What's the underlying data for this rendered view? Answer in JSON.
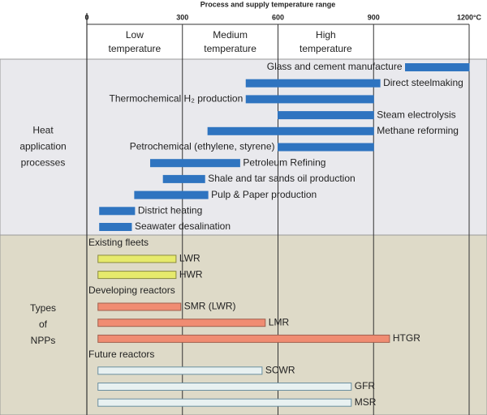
{
  "chart_data": {
    "type": "range-bar",
    "title": "Process and supply temperature range",
    "xlim": [
      0,
      1200
    ],
    "xticks": [
      0,
      300,
      600,
      900,
      {
        "value": 1200,
        "label": "1200°C"
      }
    ],
    "bands": [
      [
        "Low",
        "temperature"
      ],
      [
        "Medium",
        "temperature"
      ],
      [
        "High",
        "temperature"
      ]
    ],
    "groups": [
      {
        "label": [
          "Heat",
          "application",
          "processes"
        ],
        "background": "#e9e9ed",
        "subgroups": [
          {
            "color": "#2f74c0",
            "stroke": "#2f74c0",
            "bars": [
              {
                "label": "Glass and cement manufacture",
                "start": 1000,
                "end": 1200
              },
              {
                "label": "Direct steelmaking",
                "start": 500,
                "end": 920
              },
              {
                "label": "Thermochemical H₂ production",
                "start": 500,
                "end": 900
              },
              {
                "label": "Steam electrolysis",
                "start": 600,
                "end": 900
              },
              {
                "label": "Methane reforming",
                "start": 380,
                "end": 900
              },
              {
                "label": "Petrochemical (ethylene, styrene)",
                "start": 600,
                "end": 900
              },
              {
                "label": "Petroleum Refining",
                "start": 200,
                "end": 480
              },
              {
                "label": "Shale and tar sands oil production",
                "start": 240,
                "end": 370
              },
              {
                "label": "Pulp & Paper production",
                "start": 150,
                "end": 380
              },
              {
                "label": "District heating",
                "start": 40,
                "end": 150
              },
              {
                "label": "Seawater desalination",
                "start": 40,
                "end": 140
              }
            ]
          }
        ]
      },
      {
        "label": [
          "Types",
          "of",
          "NPPs"
        ],
        "background": "#dedac8",
        "subgroups": [
          {
            "name": "Existing fleets",
            "color": "#e6ea6c",
            "stroke": "#8a8a40",
            "bars": [
              {
                "label": "LWR",
                "start": 35,
                "end": 280
              },
              {
                "label": "HWR",
                "start": 35,
                "end": 280
              }
            ]
          },
          {
            "name": "Developing reactors",
            "color": "#f08c72",
            "stroke": "#a0604e",
            "bars": [
              {
                "label": "SMR (LWR)",
                "start": 35,
                "end": 295
              },
              {
                "label": "LMR",
                "start": 35,
                "end": 560
              },
              {
                "label": "HTGR",
                "start": 35,
                "end": 950
              }
            ]
          },
          {
            "name": "Future reactors",
            "color": "#e8f1f1",
            "stroke": "#6a8fa0",
            "bars": [
              {
                "label": "SCWR",
                "start": 35,
                "end": 550
              },
              {
                "label": "GFR",
                "start": 35,
                "end": 830
              },
              {
                "label": "MSR",
                "start": 35,
                "end": 830
              }
            ]
          }
        ]
      }
    ]
  }
}
